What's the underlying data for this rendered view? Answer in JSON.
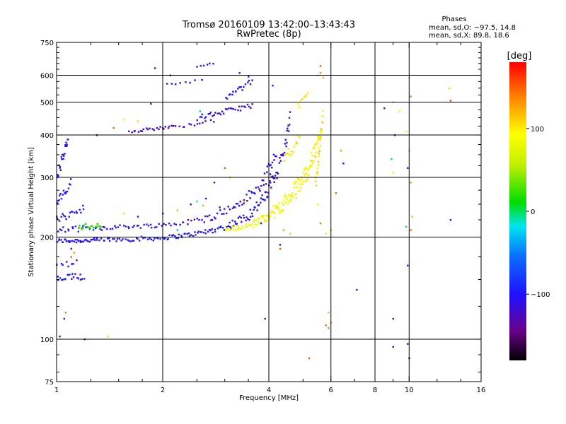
{
  "chart_data": {
    "type": "scatter",
    "title": "Tromsø 20160109 13:42:00–13:43:43",
    "subtitle": "RwPretec (8p)",
    "stats": {
      "heading": "Phases",
      "line1": "mean, sd,O: −97.5, 14.8",
      "line2": "mean, sd,X:  89.8, 18.6"
    },
    "xlabel": "Frequency [MHz]",
    "ylabel": "Stationary phase Virtual Height [km]",
    "x_scale": "log",
    "y_scale": "log",
    "xlim": [
      1,
      16
    ],
    "ylim": [
      75,
      750
    ],
    "x_ticks": [
      {
        "v": 1,
        "label": "1"
      },
      {
        "v": 2,
        "label": "2"
      },
      {
        "v": 4,
        "label": "4"
      },
      {
        "v": 6,
        "label": "6"
      },
      {
        "v": 8,
        "label": "8"
      },
      {
        "v": 10,
        "label": "10"
      },
      {
        "v": 16,
        "label": "16"
      }
    ],
    "x_grid": [
      2,
      4,
      6,
      8,
      10
    ],
    "y_ticks": [
      {
        "v": 75,
        "label": "75"
      },
      {
        "v": 100,
        "label": "100"
      },
      {
        "v": 200,
        "label": "200"
      },
      {
        "v": 300,
        "label": "300"
      },
      {
        "v": 400,
        "label": "400"
      },
      {
        "v": 500,
        "label": "500"
      },
      {
        "v": 600,
        "label": "600"
      },
      {
        "v": 750,
        "label": "750"
      }
    ],
    "y_grid": [
      100,
      200,
      300,
      400,
      500,
      600
    ],
    "grid": true,
    "colorbar": {
      "label": "[deg]",
      "range": [
        -180,
        180
      ],
      "ticks": [
        {
          "v": 100,
          "label": "100"
        },
        {
          "v": 0,
          "label": "0"
        },
        {
          "v": -100,
          "label": "−100"
        }
      ]
    },
    "series": [
      {
        "traces": [
          {
            "from": [
              1.0,
              195
            ],
            "to": [
              1.3,
              196
            ],
            "n": 34,
            "phase": -102,
            "jy": 3
          },
          {
            "from": [
              1.3,
              196
            ],
            "to": [
              2.0,
              199
            ],
            "n": 36,
            "phase": -100,
            "jy": 3
          },
          {
            "from": [
              2.0,
              199
            ],
            "to": [
              2.5,
              205
            ],
            "n": 22,
            "phase": -100,
            "jy": 3
          },
          {
            "from": [
              2.5,
              205
            ],
            "to": [
              3.0,
              214
            ],
            "n": 20,
            "phase": -102,
            "jy": 4
          },
          {
            "from": [
              3.0,
              214
            ],
            "to": [
              3.5,
              232
            ],
            "n": 20,
            "phase": -104,
            "jy": 6
          },
          {
            "from": [
              3.5,
              232
            ],
            "to": [
              3.9,
              262
            ],
            "n": 18,
            "phase": -106,
            "jy": 10
          },
          {
            "from": [
              3.9,
              262
            ],
            "to": [
              4.2,
              310
            ],
            "n": 16,
            "phase": -108,
            "jy": 14
          },
          {
            "from": [
              4.2,
              310
            ],
            "to": [
              4.45,
              370
            ],
            "n": 12,
            "phase": -110,
            "jy": 16
          },
          {
            "from": [
              4.45,
              370
            ],
            "to": [
              4.6,
              460
            ],
            "n": 10,
            "phase": -110,
            "jy": 18
          },
          {
            "from": [
              1.0,
              210
            ],
            "to": [
              1.4,
              214
            ],
            "n": 26,
            "phase": -100,
            "jy": 4
          },
          {
            "from": [
              1.4,
              214
            ],
            "to": [
              2.0,
              217
            ],
            "n": 24,
            "phase": -102,
            "jy": 3
          },
          {
            "from": [
              2.0,
              217
            ],
            "to": [
              2.6,
              225
            ],
            "n": 16,
            "phase": -104,
            "jy": 4
          },
          {
            "from": [
              2.6,
              225
            ],
            "to": [
              3.2,
              246
            ],
            "n": 18,
            "phase": -106,
            "jy": 6
          },
          {
            "from": [
              3.2,
              246
            ],
            "to": [
              3.8,
              282
            ],
            "n": 20,
            "phase": -108,
            "jy": 10
          },
          {
            "from": [
              3.8,
              282
            ],
            "to": [
              4.2,
              350
            ],
            "n": 18,
            "phase": -110,
            "jy": 16
          },
          {
            "from": [
              1.0,
              225
            ],
            "to": [
              1.2,
              245
            ],
            "n": 18,
            "phase": -100,
            "jy": 6
          },
          {
            "from": [
              1.0,
              250
            ],
            "to": [
              1.1,
              290
            ],
            "n": 16,
            "phase": -100,
            "jy": 10
          },
          {
            "from": [
              1.0,
              300
            ],
            "to": [
              1.08,
              390
            ],
            "n": 22,
            "phase": -100,
            "jy": 14
          },
          {
            "from": [
              1.0,
              150
            ],
            "to": [
              1.2,
              154
            ],
            "n": 20,
            "phase": -100,
            "jy": 4
          },
          {
            "from": [
              1.0,
              165
            ],
            "to": [
              1.15,
              170
            ],
            "n": 8,
            "phase": -105,
            "jy": 4
          },
          {
            "from": [
              1.6,
              410
            ],
            "to": [
              2.2,
              425
            ],
            "n": 24,
            "phase": -120,
            "jy": 4
          },
          {
            "from": [
              2.2,
              425
            ],
            "to": [
              2.8,
              440
            ],
            "n": 12,
            "phase": -115,
            "jy": 5
          },
          {
            "from": [
              2.5,
              450
            ],
            "to": [
              3.6,
              490
            ],
            "n": 34,
            "phase": -110,
            "jy": 8
          },
          {
            "from": [
              3.0,
              510
            ],
            "to": [
              3.6,
              580
            ],
            "n": 18,
            "phase": -105,
            "jy": 10
          },
          {
            "from": [
              2.0,
              560
            ],
            "to": [
              2.6,
              580
            ],
            "n": 8,
            "phase": -110,
            "jy": 6
          },
          {
            "from": [
              2.5,
              640
            ],
            "to": [
              2.8,
              650
            ],
            "n": 6,
            "phase": -100,
            "jy": 4
          },
          {
            "from": [
              1.15,
              214
            ],
            "to": [
              1.35,
              218
            ],
            "n": 18,
            "phase": 20,
            "jy": 4
          },
          {
            "from": [
              3.0,
              210
            ],
            "to": [
              3.6,
              218
            ],
            "n": 22,
            "phase": 85,
            "jy": 3
          },
          {
            "from": [
              3.6,
              218
            ],
            "to": [
              4.1,
              235
            ],
            "n": 26,
            "phase": 90,
            "jy": 6
          },
          {
            "from": [
              4.1,
              235
            ],
            "to": [
              4.7,
              270
            ],
            "n": 34,
            "phase": 90,
            "jy": 12
          },
          {
            "from": [
              4.7,
              270
            ],
            "to": [
              5.2,
              320
            ],
            "n": 34,
            "phase": 92,
            "jy": 18
          },
          {
            "from": [
              5.2,
              320
            ],
            "to": [
              5.6,
              400
            ],
            "n": 30,
            "phase": 95,
            "jy": 22
          },
          {
            "from": [
              5.4,
              280
            ],
            "to": [
              5.7,
              460
            ],
            "n": 22,
            "phase": 110,
            "jy": 20
          },
          {
            "from": [
              4.4,
              330
            ],
            "to": [
              4.9,
              400
            ],
            "n": 16,
            "phase": 100,
            "jy": 16
          },
          {
            "from": [
              4.8,
              480
            ],
            "to": [
              5.2,
              540
            ],
            "n": 8,
            "phase": 95,
            "jy": 10
          }
        ],
        "points": [
          [
            1.9,
            630,
            -110
          ],
          [
            2.1,
            600,
            -100
          ],
          [
            3.3,
            610,
            -120
          ],
          [
            3.5,
            595,
            -100
          ],
          [
            4.1,
            560,
            -100
          ],
          [
            5.6,
            610,
            140
          ],
          [
            5.7,
            590,
            120
          ],
          [
            5.6,
            640,
            150
          ],
          [
            8.5,
            480,
            -110
          ],
          [
            9.0,
            500,
            120
          ],
          [
            9.1,
            400,
            -100
          ],
          [
            9.4,
            470,
            100
          ],
          [
            9.8,
            410,
            90
          ],
          [
            10.0,
            360,
            110
          ],
          [
            10.1,
            520,
            140
          ],
          [
            10.0,
            590,
            100
          ],
          [
            13.0,
            550,
            110
          ],
          [
            13.1,
            505,
            160
          ],
          [
            6.4,
            360,
            130
          ],
          [
            6.5,
            330,
            -100
          ],
          [
            8.9,
            340,
            -30
          ],
          [
            9.0,
            310,
            100
          ],
          [
            9.9,
            320,
            -100
          ],
          [
            10.1,
            290,
            130
          ],
          [
            10.2,
            230,
            120
          ],
          [
            9.8,
            215,
            0
          ],
          [
            10.1,
            210,
            150
          ],
          [
            13.1,
            225,
            -100
          ],
          [
            6.2,
            270,
            150
          ],
          [
            6.0,
            210,
            120
          ],
          [
            5.8,
            205,
            100
          ],
          [
            5.6,
            220,
            140
          ],
          [
            5.9,
            120,
            120
          ],
          [
            5.8,
            110,
            150
          ],
          [
            5.9,
            108,
            140
          ],
          [
            6.0,
            112,
            130
          ],
          [
            7.1,
            140,
            -100
          ],
          [
            9.0,
            115,
            -120
          ],
          [
            9.9,
            165,
            -120
          ],
          [
            9.9,
            97,
            -110
          ],
          [
            9.0,
            95,
            -100
          ],
          [
            10.0,
            88,
            -110
          ],
          [
            5.2,
            88,
            150
          ],
          [
            3.9,
            115,
            -100
          ],
          [
            4.4,
            210,
            130
          ],
          [
            4.3,
            190,
            -110
          ],
          [
            3.8,
            220,
            -100
          ],
          [
            3.0,
            320,
            150
          ],
          [
            2.8,
            290,
            -120
          ],
          [
            1.55,
            445,
            100
          ],
          [
            1.7,
            440,
            110
          ],
          [
            1.45,
            420,
            150
          ],
          [
            1.85,
            495,
            -120
          ],
          [
            1.3,
            400,
            -110
          ],
          [
            1.2,
            100,
            -130
          ],
          [
            1.4,
            102,
            110
          ],
          [
            1.02,
            102,
            -110
          ],
          [
            1.05,
            115,
            -120
          ],
          [
            1.06,
            120,
            140
          ],
          [
            1.1,
            185,
            -110
          ],
          [
            1.1,
            175,
            150
          ],
          [
            1.12,
            180,
            130
          ],
          [
            1.0,
            230,
            -100
          ],
          [
            1.55,
            235,
            110
          ],
          [
            1.7,
            230,
            -100
          ],
          [
            2.0,
            235,
            -110
          ],
          [
            2.2,
            240,
            120
          ],
          [
            2.4,
            250,
            -110
          ],
          [
            2.65,
            260,
            -100
          ],
          [
            2.6,
            248,
            40
          ],
          [
            2.5,
            255,
            -20
          ],
          [
            2.9,
            245,
            -110
          ],
          [
            3.1,
            300,
            110
          ],
          [
            4.3,
            185,
            150
          ],
          [
            4.6,
            205,
            110
          ],
          [
            5.5,
            250,
            100
          ],
          [
            5.5,
            600,
            110
          ],
          [
            2.55,
            470,
            -30
          ],
          [
            2.2,
            210,
            -30
          ],
          [
            3.4,
            255,
            110
          ]
        ]
      }
    ]
  }
}
